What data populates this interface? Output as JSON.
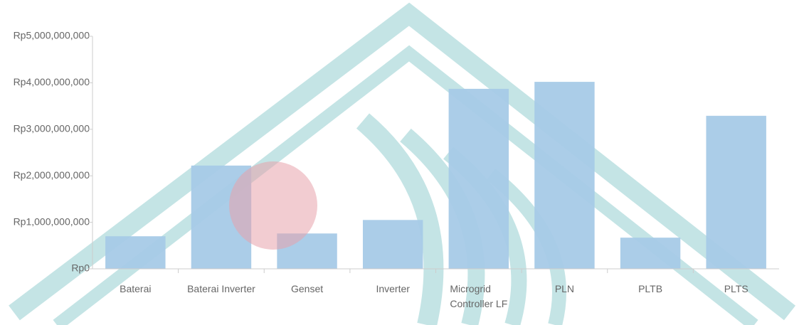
{
  "chart_data": {
    "type": "bar",
    "categories": [
      "Baterai",
      "Baterai Inverter",
      "Genset",
      "Inverter",
      "Microgrid Controller LF",
      "PLN",
      "PLTB",
      "PLTS"
    ],
    "values": [
      700000000,
      2220000000,
      760000000,
      1050000000,
      3870000000,
      4020000000,
      670000000,
      3290000000
    ],
    "color": "#a6cae7",
    "ylim": [
      0,
      5000000000
    ],
    "yticks": [
      {
        "value": 0,
        "label": "Rp0"
      },
      {
        "value": 1000000000,
        "label": "Rp1,000,000,000"
      },
      {
        "value": 2000000000,
        "label": "Rp2,000,000,000"
      },
      {
        "value": 3000000000,
        "label": "Rp3,000,000,000"
      },
      {
        "value": 4000000000,
        "label": "Rp4,000,000,000"
      },
      {
        "value": 5000000000,
        "label": "Rp5,000,000,000"
      }
    ],
    "grid": false
  }
}
